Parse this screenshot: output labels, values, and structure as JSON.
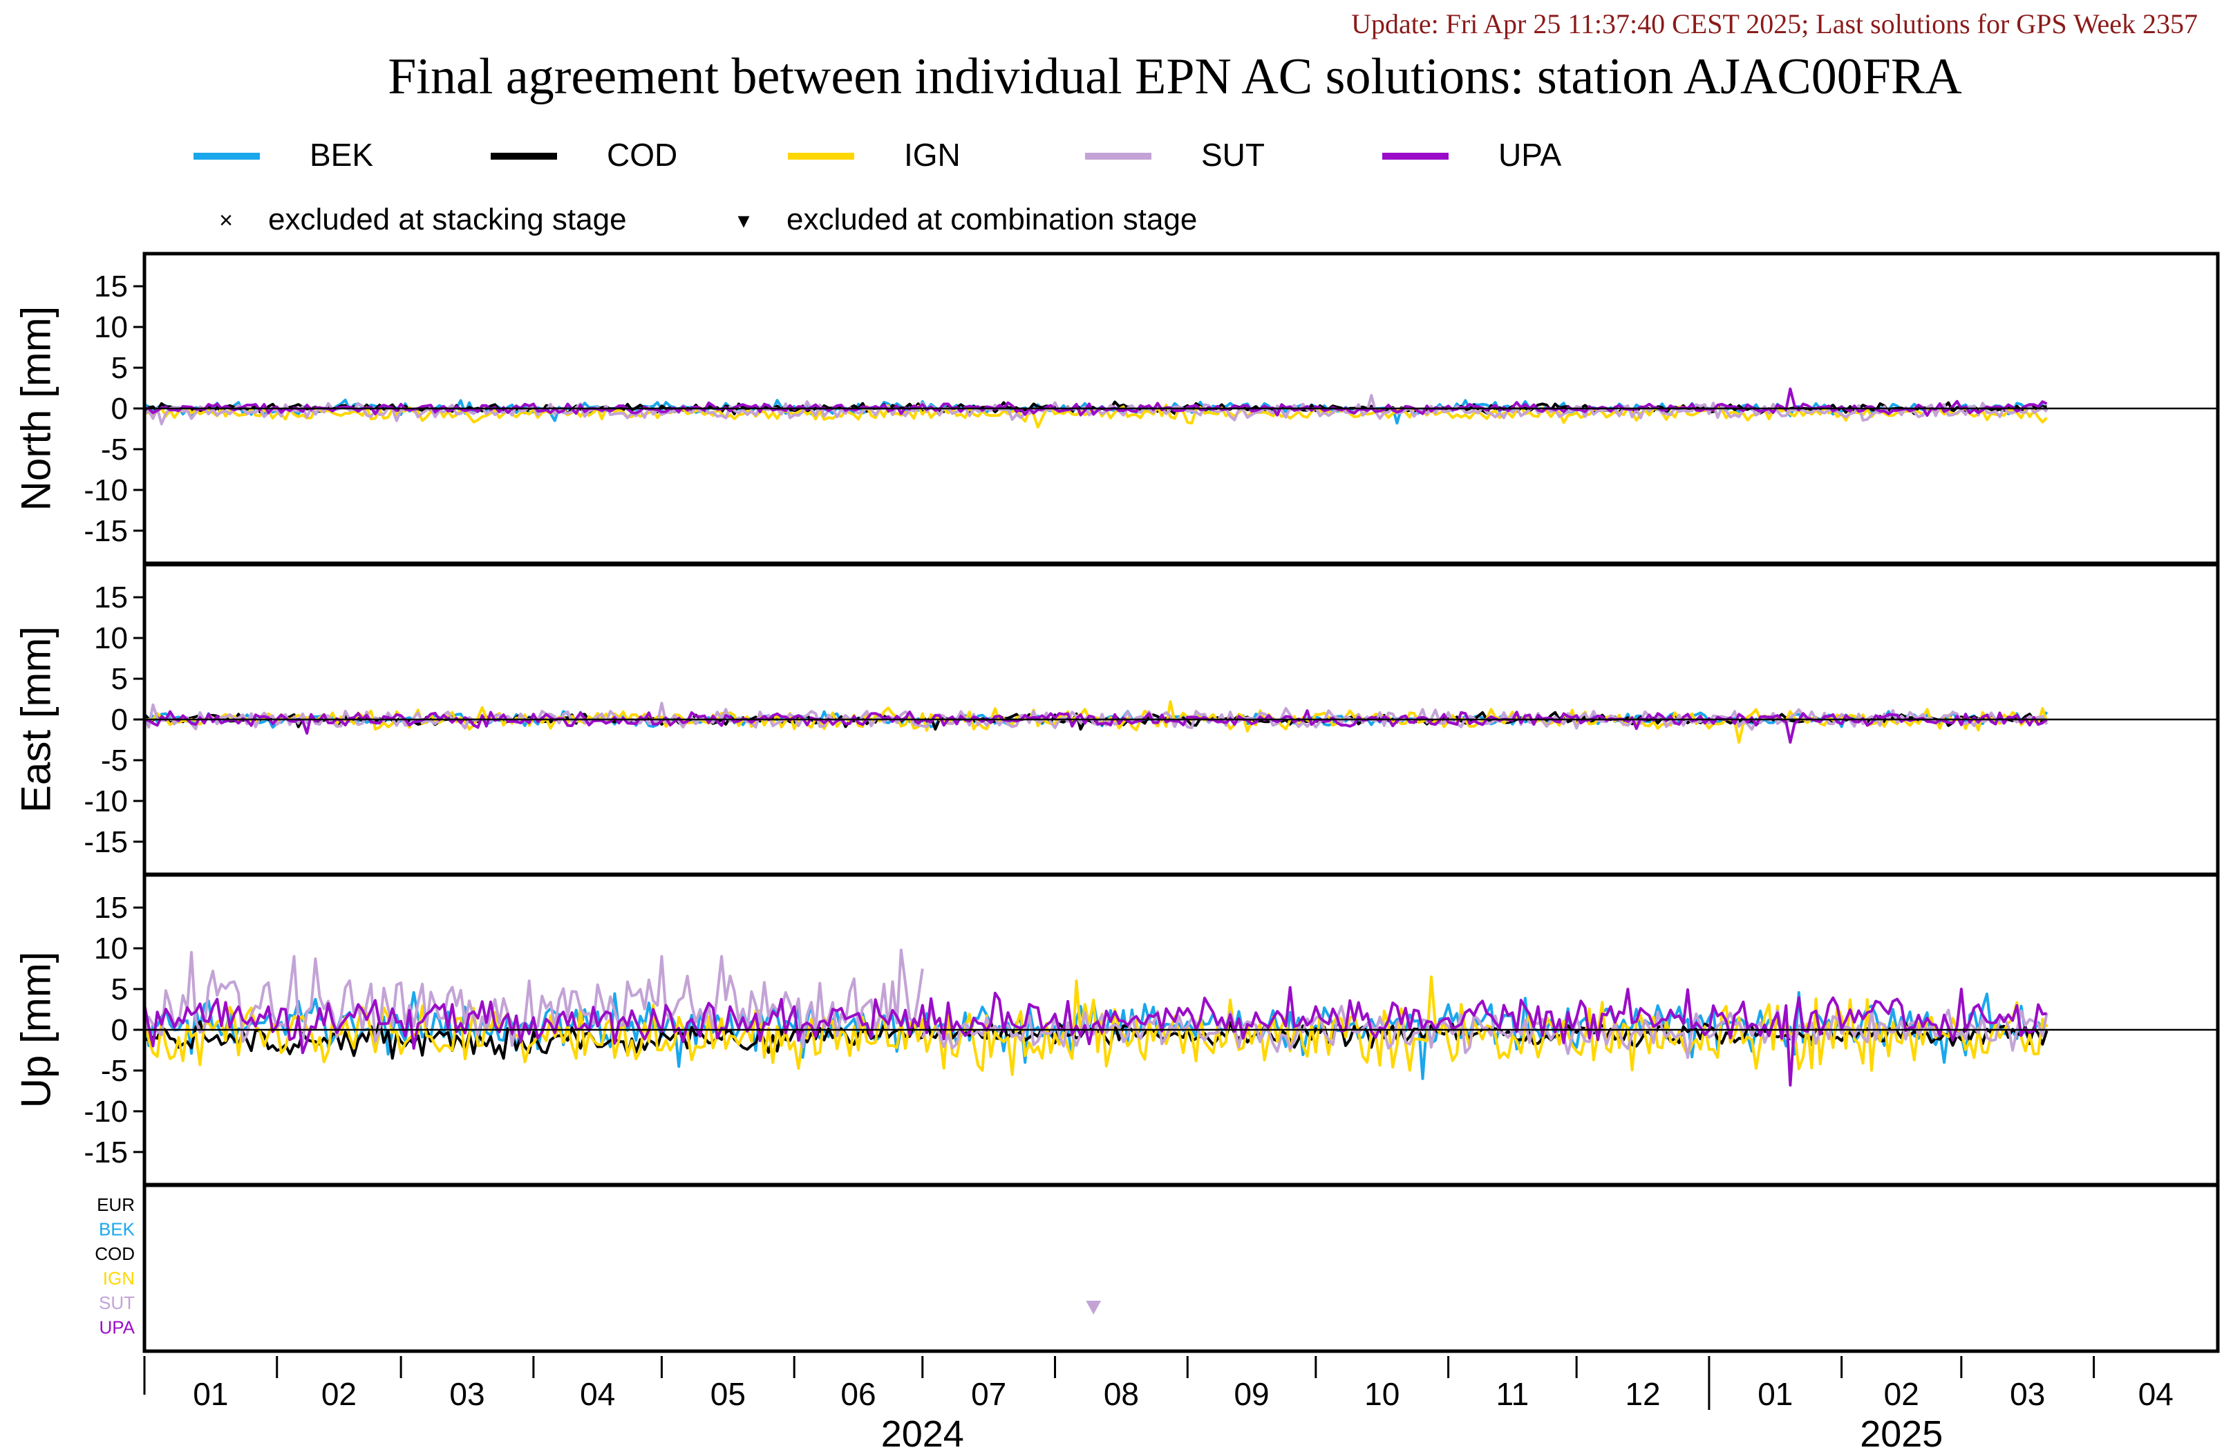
{
  "header": {
    "update_text": "Update: Fri Apr 25 11:37:40 CEST 2025; Last solutions for GPS Week 2357",
    "title": "Final agreement between individual EPN AC solutions: station AJAC00FRA",
    "update_color": "#8b1a1a"
  },
  "legend": {
    "series": [
      {
        "name": "BEK",
        "color": "#1aa7ec"
      },
      {
        "name": "COD",
        "color": "#000000"
      },
      {
        "name": "IGN",
        "color": "#ffd700"
      },
      {
        "name": "SUT",
        "color": "#c3a3d6"
      },
      {
        "name": "UPA",
        "color": "#9a0cc8"
      }
    ],
    "markers": {
      "stacking": {
        "symbol": "×",
        "label": "excluded at stacking stage"
      },
      "combination": {
        "symbol": "▾",
        "label": "excluded at combination stage"
      }
    }
  },
  "chart_data": {
    "type": "line",
    "panels": [
      {
        "ylabel": "North [mm]",
        "ylim": [
          -19,
          19
        ],
        "yticks": [
          15,
          10,
          5,
          0,
          -5,
          -10,
          -15
        ],
        "zero_line": true
      },
      {
        "ylabel": "East [mm]",
        "ylim": [
          -19,
          19
        ],
        "yticks": [
          15,
          10,
          5,
          0,
          -5,
          -10,
          -15
        ],
        "zero_line": true
      },
      {
        "ylabel": "Up [mm]",
        "ylim": [
          -19,
          19
        ],
        "yticks": [
          15,
          10,
          5,
          0,
          -5,
          -10,
          -15
        ],
        "zero_line": true
      }
    ],
    "x": {
      "range": [
        "2024-01-01",
        "2025-04-30"
      ],
      "month_labels": [
        "01",
        "02",
        "03",
        "04",
        "05",
        "06",
        "07",
        "08",
        "09",
        "10",
        "11",
        "12",
        "01",
        "02",
        "03",
        "04"
      ],
      "month_starts": [
        "2024-01-01",
        "2024-02-01",
        "2024-03-01",
        "2024-04-01",
        "2024-05-01",
        "2024-06-01",
        "2024-07-01",
        "2024-08-01",
        "2024-09-01",
        "2024-10-01",
        "2024-11-01",
        "2024-12-01",
        "2025-01-01",
        "2025-02-01",
        "2025-03-01",
        "2025-04-01"
      ],
      "year_labels": [
        {
          "text": "2024",
          "at": "2024-07-01"
        },
        {
          "text": "2025",
          "at": "2025-02-15"
        }
      ],
      "last_date": "2025-03-21"
    },
    "series": [
      {
        "name": "BEK",
        "color": "#1aa7ec",
        "north_sd": 0.35,
        "east_sd": 0.35,
        "up_sd": 1.5,
        "up_offset": 0.5,
        "north_spikes": [
          [
            "2024-04-06",
            -1.5
          ],
          [
            "2024-10-20",
            -1.8
          ],
          [
            "2025-01-20",
            -0.9
          ]
        ],
        "east_spikes": [
          [
            "2024-08-18",
            1.0
          ]
        ],
        "up_spikes": [
          [
            "2024-05-05",
            -4.5
          ],
          [
            "2024-07-25",
            -4.0
          ],
          [
            "2024-10-26",
            -6.0
          ],
          [
            "2025-02-25",
            -4.0
          ]
        ]
      },
      {
        "name": "COD",
        "color": "#000000",
        "north_sd": 0.25,
        "east_sd": 0.3,
        "up_sd": 0.9,
        "up_offset": -1.2,
        "north_spikes": [
          [
            "2024-08-15",
            0.8
          ]
        ],
        "east_spikes": [
          [
            "2024-07-04",
            -1.2
          ],
          [
            "2024-08-07",
            -1.2
          ]
        ],
        "up_spikes": [
          [
            "2024-02-28",
            -3.5
          ],
          [
            "2024-03-25",
            -3.5
          ],
          [
            "2024-06-15",
            -3.0
          ]
        ]
      },
      {
        "name": "IGN",
        "color": "#ffd700",
        "north_sd": 0.4,
        "east_sd": 0.55,
        "up_sd": 1.8,
        "up_offset": -0.8,
        "north_offset": -0.6,
        "north_spikes": [
          [
            "2024-07-28",
            -2.3
          ],
          [
            "2024-09-02",
            -1.8
          ]
        ],
        "east_spikes": [
          [
            "2024-08-28",
            2.2
          ],
          [
            "2025-01-08",
            -2.8
          ]
        ],
        "up_spikes": [
          [
            "2024-08-06",
            6.0
          ],
          [
            "2024-10-28",
            6.5
          ],
          [
            "2024-07-22",
            -5.5
          ]
        ]
      },
      {
        "name": "SUT",
        "color": "#c3a3d6",
        "north_sd": 0.45,
        "east_sd": 0.5,
        "up_sd": 2.2,
        "up_offset": 2.5,
        "north_offset": -0.3,
        "north_spikes": [
          [
            "2024-01-05",
            -1.9
          ],
          [
            "2024-10-14",
            1.6
          ]
        ],
        "east_spikes": [
          [
            "2024-01-03",
            1.8
          ],
          [
            "2024-05-01",
            2.0
          ]
        ],
        "up_spikes": [
          [
            "2024-01-12",
            9.5
          ],
          [
            "2024-02-05",
            9.0
          ],
          [
            "2024-05-01",
            9.0
          ],
          [
            "2024-05-15",
            9.0
          ],
          [
            "2024-06-26",
            9.8
          ],
          [
            "2024-07-01",
            7.5
          ]
        ],
        "up_gap": [
          "2024-07-01",
          "2025-03-21",
          0.0
        ]
      },
      {
        "name": "UPA",
        "color": "#9a0cc8",
        "north_sd": 0.3,
        "east_sd": 0.4,
        "up_sd": 1.4,
        "up_offset": 1.2,
        "north_spikes": [
          [
            "2025-01-20",
            2.4
          ]
        ],
        "east_spikes": [
          [
            "2024-02-08",
            -1.7
          ],
          [
            "2025-01-20",
            -2.8
          ]
        ],
        "up_spikes": [
          [
            "2025-01-20",
            -6.8
          ],
          [
            "2024-12-13",
            5.0
          ],
          [
            "2025-02-29",
            5.0
          ]
        ]
      }
    ],
    "exclusion_panel": {
      "rows": [
        {
          "label": "EUR",
          "color": "#000000"
        },
        {
          "label": "BEK",
          "color": "#1aa7ec"
        },
        {
          "label": "COD",
          "color": "#000000"
        },
        {
          "label": "IGN",
          "color": "#ffd700"
        },
        {
          "label": "SUT",
          "color": "#c3a3d6"
        },
        {
          "label": "UPA",
          "color": "#9a0cc8"
        }
      ],
      "markers": [
        {
          "row": "SUT",
          "date": "2024-08-10",
          "type": "combination"
        }
      ]
    }
  }
}
